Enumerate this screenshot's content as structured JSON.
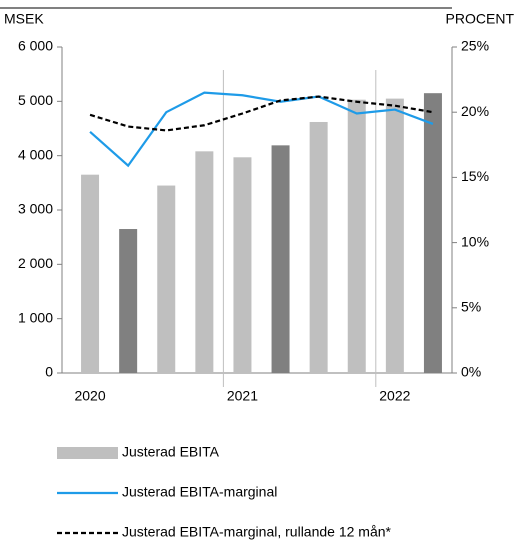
{
  "chart_data": {
    "type": "bar",
    "y_axis_label": "MSEK",
    "y2_axis_label": "PROCENT",
    "categories": [
      "2020",
      null,
      null,
      null,
      "2021",
      null,
      null,
      null,
      "2022",
      null
    ],
    "series": [
      {
        "name": "Justerad EBITA",
        "type": "bar",
        "colors": [
          "#bfbfbf",
          "#808080",
          "#bfbfbf",
          "#bfbfbf",
          "#bfbfbf",
          "#808080",
          "#bfbfbf",
          "#bfbfbf",
          "#bfbfbf",
          "#808080"
        ],
        "values": [
          3650,
          2650,
          3450,
          4080,
          3970,
          4190,
          4620,
          5030,
          5050,
          5150
        ]
      },
      {
        "name": "Justerad EBITA-marginal",
        "type": "line",
        "color": "#1e9be8",
        "axis": "y2",
        "values": [
          18.5,
          15.9,
          20.0,
          21.5,
          21.3,
          20.8,
          21.2,
          19.9,
          20.2,
          19.1
        ]
      },
      {
        "name": "Justerad EBITA-marginal, rullande 12 mån*",
        "type": "line",
        "color": "#000000",
        "dashed": true,
        "axis": "y2",
        "values": [
          19.8,
          18.9,
          18.6,
          19.0,
          19.9,
          20.9,
          21.2,
          20.8,
          20.5,
          20.0
        ]
      }
    ],
    "ylim": [
      0,
      6000
    ],
    "yticks": [
      0,
      {
        "value": 1000,
        "label": "1 000"
      },
      {
        "value": 2000,
        "label": "2 000"
      },
      {
        "value": 3000,
        "label": "3 000"
      },
      {
        "value": 4000,
        "label": "4 000"
      },
      {
        "value": 5000,
        "label": "5 000"
      },
      {
        "value": 6000,
        "label": "6 000"
      }
    ],
    "y2lim": [
      0,
      25
    ],
    "y2ticks": [
      {
        "value": 0,
        "label": "0%"
      },
      {
        "value": 5,
        "label": "5%"
      },
      {
        "value": 10,
        "label": "10%"
      },
      {
        "value": 15,
        "label": "15%"
      },
      {
        "value": 20,
        "label": "20%"
      },
      {
        "value": 25,
        "label": "25%"
      }
    ]
  }
}
